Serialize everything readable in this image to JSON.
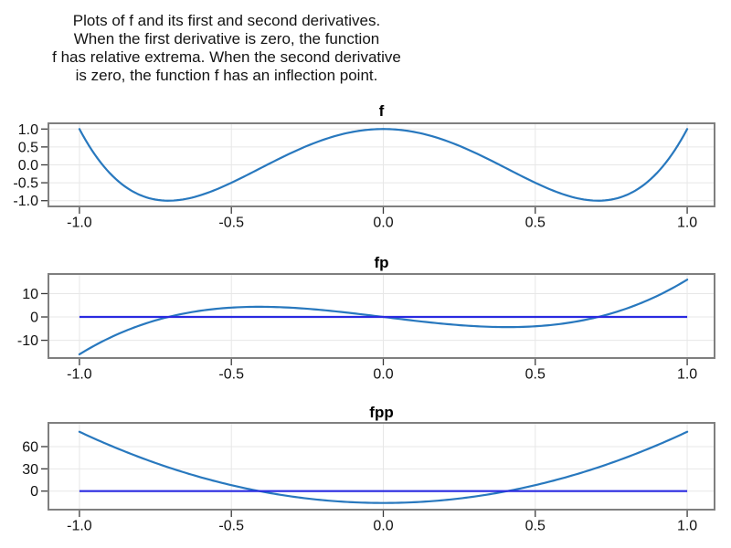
{
  "caption": {
    "lines": [
      "Plots of f and its first and second derivatives.",
      "When the first derivative is zero, the function",
      "f has relative extrema. When the second derivative",
      "is zero, the function f has an inflection point."
    ]
  },
  "colors": {
    "curve": "#2878BE",
    "zero_line": "#2A2AE0",
    "panel_border": "#7F7F7F",
    "grid": "#E7E7E7",
    "tick": "#3A3A3A",
    "label": "#111111"
  },
  "chart_data": [
    {
      "type": "line",
      "title": "f",
      "xlabel": "",
      "ylabel": "",
      "grid": true,
      "legend": false,
      "zero_reference_line": false,
      "x_domain": [
        -1,
        1
      ],
      "xlim": [
        -1.102,
        1.09
      ],
      "ylim": [
        -1.16,
        1.16
      ],
      "x_ticks": {
        "values": [
          -1,
          -0.5,
          0,
          0.5,
          1
        ],
        "labels": [
          "-1.0",
          "-0.5",
          "0.0",
          "0.5",
          "1.0"
        ]
      },
      "y_ticks": {
        "values": [
          1,
          0.5,
          0,
          -0.5,
          -1
        ],
        "labels": [
          "1.0",
          "0.5",
          "0.0",
          "-0.5",
          "-1.0"
        ]
      },
      "series": [
        {
          "name": "f",
          "poly_coefficients": [
            1,
            0,
            -8,
            0,
            8
          ],
          "sample_x": [
            -1,
            -0.8,
            -0.6,
            -0.4,
            -0.2,
            0,
            0.2,
            0.4,
            0.6,
            0.8,
            1
          ],
          "sample_y": [
            1,
            -0.8432,
            -0.8432,
            -0.0752,
            0.6928,
            1,
            0.6928,
            -0.0752,
            -0.8432,
            -0.8432,
            1
          ]
        }
      ]
    },
    {
      "type": "line",
      "title": "fp",
      "xlabel": "",
      "ylabel": "",
      "grid": true,
      "legend": false,
      "zero_reference_line": true,
      "x_domain": [
        -1,
        1
      ],
      "xlim": [
        -1.102,
        1.09
      ],
      "ylim": [
        -17.6,
        18.4
      ],
      "x_ticks": {
        "values": [
          -1,
          -0.5,
          0,
          0.5,
          1
        ],
        "labels": [
          "-1.0",
          "-0.5",
          "0.0",
          "0.5",
          "1.0"
        ]
      },
      "y_ticks": {
        "values": [
          10,
          0,
          -10
        ],
        "labels": [
          "10",
          "0",
          "-10"
        ]
      },
      "series": [
        {
          "name": "fp",
          "poly_coefficients": [
            0,
            -16,
            0,
            32
          ],
          "sample_x": [
            -1,
            -0.8,
            -0.6,
            -0.4,
            -0.2,
            0,
            0.2,
            0.4,
            0.6,
            0.8,
            1
          ],
          "sample_y": [
            -16,
            -3.584,
            2.688,
            4.352,
            2.944,
            0,
            -2.944,
            -4.352,
            -2.688,
            3.584,
            16
          ]
        }
      ]
    },
    {
      "type": "line",
      "title": "fpp",
      "xlabel": "",
      "ylabel": "",
      "grid": true,
      "legend": false,
      "zero_reference_line": true,
      "x_domain": [
        -1,
        1
      ],
      "xlim": [
        -1.102,
        1.09
      ],
      "ylim": [
        -25,
        92
      ],
      "x_ticks": {
        "values": [
          -1,
          -0.5,
          0,
          0.5,
          1
        ],
        "labels": [
          "-1.0",
          "-0.5",
          "0.0",
          "0.5",
          "1.0"
        ]
      },
      "y_ticks": {
        "values": [
          60,
          30,
          0
        ],
        "labels": [
          "60",
          "30",
          "0"
        ]
      },
      "series": [
        {
          "name": "fpp",
          "poly_coefficients": [
            -16,
            0,
            96
          ],
          "sample_x": [
            -1,
            -0.8,
            -0.6,
            -0.4,
            -0.2,
            0,
            0.2,
            0.4,
            0.6,
            0.8,
            1
          ],
          "sample_y": [
            80,
            45.44,
            18.56,
            -0.64,
            -12.16,
            -16,
            -12.16,
            -0.64,
            18.56,
            45.44,
            80
          ]
        }
      ]
    }
  ]
}
